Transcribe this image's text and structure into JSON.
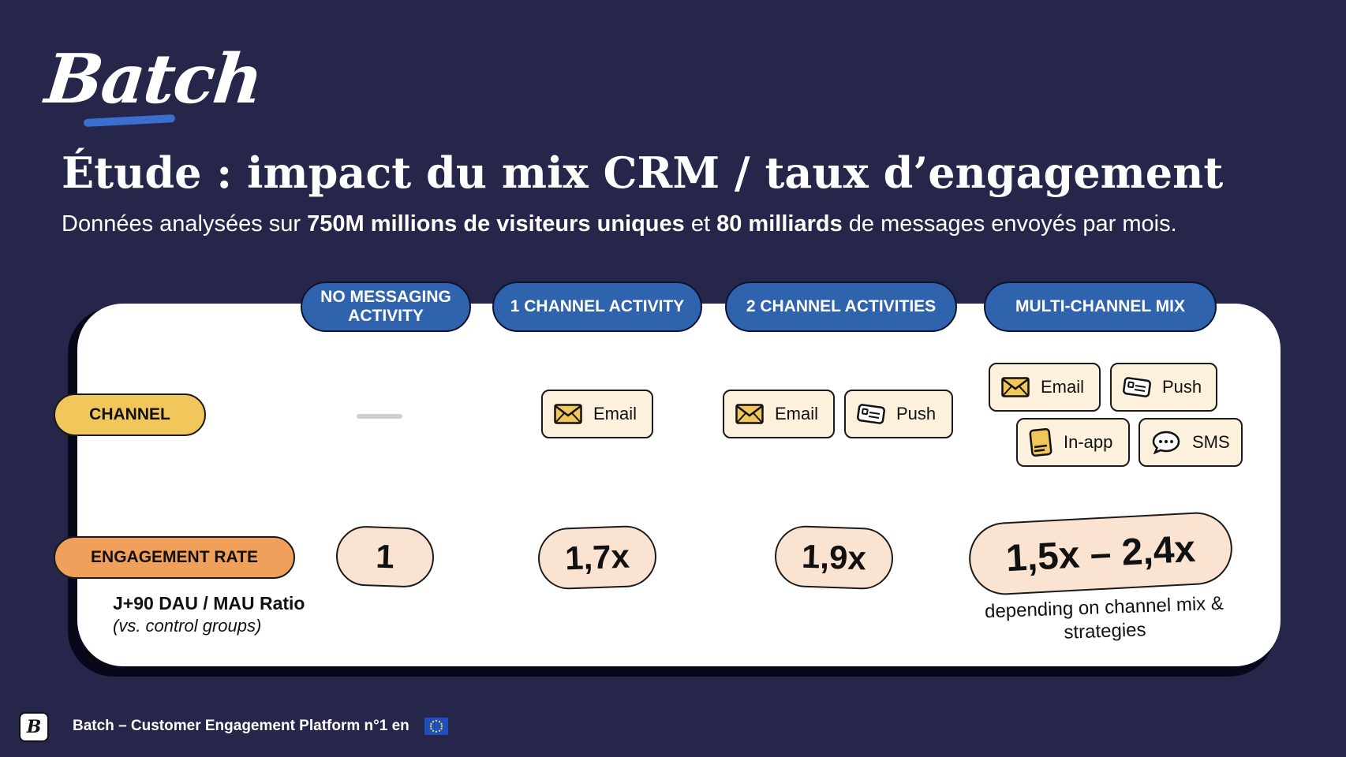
{
  "brand": {
    "logo_text": "Batch"
  },
  "title": "Étude : impact du mix CRM / taux d’engagement",
  "subtitle": {
    "part1": "Données analysées sur ",
    "bold1": "750M millions de visiteurs uniques",
    "part2": " et ",
    "bold2": "80 milliards",
    "part3": " de messages envoyés par mois."
  },
  "columns": [
    {
      "label": "NO MESSAGING ACTIVITY"
    },
    {
      "label": "1 CHANNEL ACTIVITY"
    },
    {
      "label": "2 CHANNEL ACTIVITIES"
    },
    {
      "label": "MULTI-CHANNEL MIX"
    }
  ],
  "rows": {
    "channel_label": "CHANNEL",
    "engagement_label": "ENGAGEMENT RATE",
    "metric_title": "J+90 DAU / MAU Ratio",
    "metric_sub": "(vs. control groups)"
  },
  "channels": {
    "email": "Email",
    "push": "Push",
    "inapp": "In-app",
    "sms": "SMS"
  },
  "values": [
    "1",
    "1,7x",
    "1,9x",
    "1,5x – 2,4x"
  ],
  "note": "depending on channel mix & strategies",
  "footer": {
    "text": "Batch – Customer Engagement Platform n°1 en"
  },
  "colors": {
    "background": "#25264a",
    "header_blue": "#2f63ae",
    "channel_yellow": "#f1c75b",
    "engagement_orange": "#f0a05a",
    "value_peach": "#fbe3d1",
    "chip_cream": "#fdf1dd"
  }
}
